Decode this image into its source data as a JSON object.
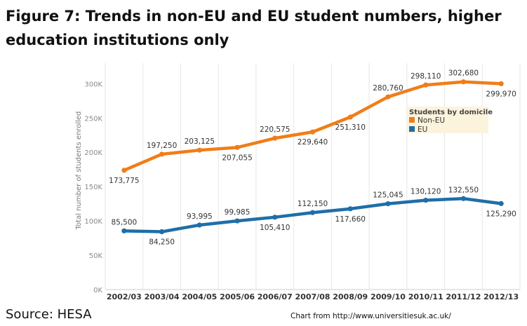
{
  "title": "Figure 7: Trends in non-EU and EU student numbers, higher education institutions only",
  "source": "Source: HESA",
  "credit": "Chart from http://www.universitiesuk.ac.uk/",
  "chart_data": {
    "type": "line",
    "categories": [
      "2002/03",
      "2003/04",
      "2004/05",
      "2005/06",
      "2006/07",
      "2007/08",
      "2008/09",
      "2009/10",
      "2010/11",
      "2011/12",
      "2012/13"
    ],
    "ylabel": "Total number of students enrolled",
    "xlabel": "",
    "ylim": [
      0,
      330000
    ],
    "yticks": [
      0,
      50000,
      100000,
      150000,
      200000,
      250000,
      300000
    ],
    "ytick_labels": [
      "0K",
      "50K",
      "100K",
      "150K",
      "200K",
      "250K",
      "300K"
    ],
    "grid": "vertical",
    "legend": {
      "title": "Students by domicile",
      "placement": "right"
    },
    "series": [
      {
        "name": "Non-EU",
        "color": "#f07d19",
        "values": [
          173775,
          197250,
          203125,
          207055,
          220575,
          229640,
          251310,
          280760,
          298110,
          302680,
          299970
        ],
        "labels": [
          "173,775",
          "197,250",
          "203,125",
          "207,055",
          "220,575",
          "229,640",
          "251,310",
          "280,760",
          "298,110",
          "302,680",
          "299,970"
        ],
        "label_pos": [
          "below",
          "above",
          "above",
          "below",
          "above",
          "below",
          "below",
          "above",
          "above",
          "above",
          "below"
        ]
      },
      {
        "name": "EU",
        "color": "#1f6ea8",
        "values": [
          85500,
          84250,
          93995,
          99985,
          105410,
          112150,
          117660,
          125045,
          130120,
          132550,
          125290
        ],
        "labels": [
          "85,500",
          "84,250",
          "93,995",
          "99,985",
          "105,410",
          "112,150",
          "117,660",
          "125,045",
          "130,120",
          "132,550",
          "125,290"
        ],
        "label_pos": [
          "above",
          "below",
          "above",
          "above",
          "below",
          "above",
          "below",
          "above",
          "above",
          "above",
          "below"
        ]
      }
    ]
  }
}
